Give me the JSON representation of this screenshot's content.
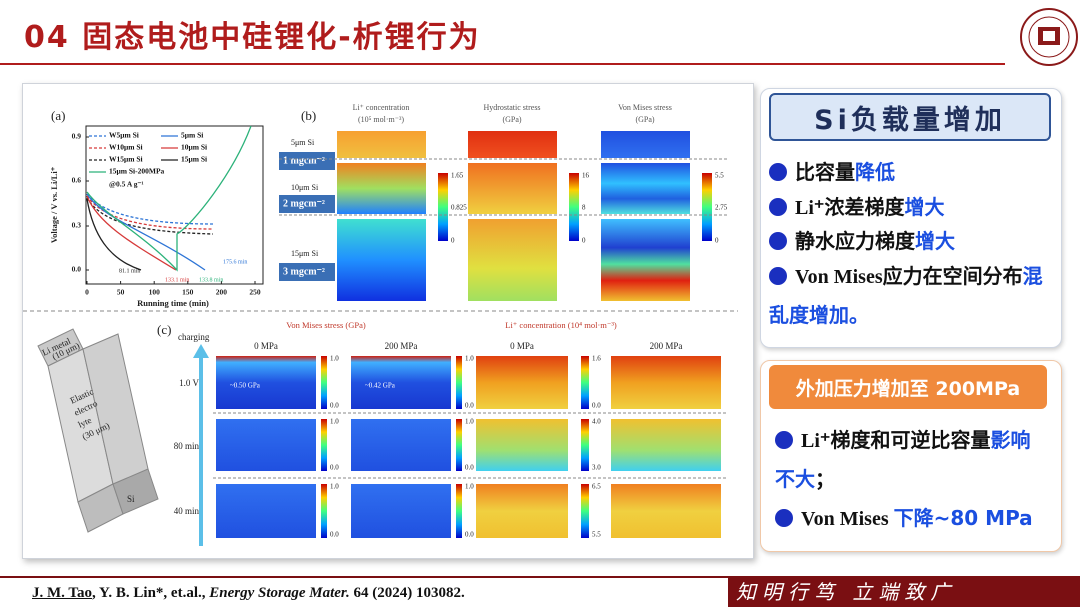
{
  "header": {
    "title": "04 固态电池中硅锂化-析锂行为"
  },
  "figure": {
    "panel_a": {
      "label": "(a)",
      "legend": [
        "W5μm Si",
        "5μm Si",
        "W10μm Si",
        "10μm Si",
        "W15μm Si",
        "15μm Si",
        "15μm Si-200MPa"
      ],
      "condition": "@0.5 A g⁻¹",
      "y_label": "Voltage / V vs. Li/Li⁺",
      "y_ticks": [
        "0.0",
        "0.3",
        "0.6",
        "0.9"
      ],
      "x_label": "Running time (min)",
      "x_ticks": [
        "0",
        "50",
        "100",
        "150",
        "200",
        "250"
      ],
      "annotations": [
        "81.1 min",
        "133.1 min",
        "133.8 min",
        "175.6 min"
      ]
    },
    "panel_b": {
      "label": "(b)",
      "columns": [
        {
          "title": "Li⁺ concentration",
          "unit": "(10⁵ mol·m⁻³)",
          "scale": [
            "1.65",
            "0.825",
            "0"
          ]
        },
        {
          "title": "Hydrostatic stress",
          "unit": "(GPa)",
          "scale": [
            "16",
            "8",
            "0"
          ]
        },
        {
          "title": "Von Mises stress",
          "unit": "(GPa)",
          "scale": [
            "5.5",
            "2.75",
            "0"
          ]
        }
      ],
      "rows": [
        {
          "thickness": "5μm Si",
          "loading": "1 mgcm⁻²"
        },
        {
          "thickness": "10μm Si",
          "loading": "2 mgcm⁻²"
        },
        {
          "thickness": "15μm Si",
          "loading": "3 mgcm⁻²"
        }
      ]
    },
    "panel_c": {
      "label": "(c)",
      "direction": "charging",
      "li_metal": [
        "Li metal",
        "(10 μm)"
      ],
      "electrolyte": [
        "Elastic",
        "electro",
        "lyte",
        "(30 μm)"
      ],
      "silicon": "Si",
      "groups": [
        {
          "title": "Von Mises stress (GPa)",
          "pressures": [
            "0 MPa",
            "200 MPa"
          ]
        },
        {
          "title": "Li⁺ concentration (10⁴ mol·m⁻³)",
          "pressures": [
            "0 MPa",
            "200 MPa"
          ]
        }
      ],
      "rows": [
        "1.0 V",
        "80 min",
        "40 min"
      ],
      "stress_scales": [
        [
          "1.0",
          "0.0"
        ],
        [
          "1.0",
          "0.0"
        ],
        [
          "1.0",
          "0.0"
        ]
      ],
      "concentration_scales": [
        [
          "1.6",
          "0.0"
        ],
        [
          "4.0",
          "3.0"
        ],
        [
          "6.5",
          "5.5"
        ]
      ],
      "peak_stress": [
        "~0.50 GPa",
        "~0.42 GPa"
      ]
    }
  },
  "panel_1": {
    "title": "Si负载量增加",
    "items": [
      [
        {
          "text": "比容量"
        },
        {
          "text": "降低",
          "emphasis": true
        }
      ],
      [
        {
          "text": "Li⁺浓差梯度"
        },
        {
          "text": "增大",
          "emphasis": true
        }
      ],
      [
        {
          "text": "静水应力梯度"
        },
        {
          "text": "增大",
          "emphasis": true
        }
      ],
      [
        {
          "text": "Von Mises应力在空间分布"
        },
        {
          "text": "混乱度增加。",
          "emphasis": true
        }
      ]
    ]
  },
  "panel_2": {
    "title": "外加压力增加至 200MPa",
    "items": [
      [
        {
          "text": "Li⁺梯度和可逆比容量"
        },
        {
          "text": "影响不大",
          "emphasis": true
        },
        {
          "text": "；"
        }
      ],
      [
        {
          "text": "Von Mises "
        },
        {
          "text": "下降~80 MPa",
          "emphasis": true
        }
      ]
    ]
  },
  "citation": [
    {
      "text": "J. M. Tao",
      "style": "underline"
    },
    {
      "text": ", Y. B. Lin*, et.al., "
    },
    {
      "text": "Energy Storage Mater.",
      "style": "italic"
    },
    {
      "text": " 64 (2024) 103082."
    }
  ],
  "motto": "知明行笃 立端致广"
}
